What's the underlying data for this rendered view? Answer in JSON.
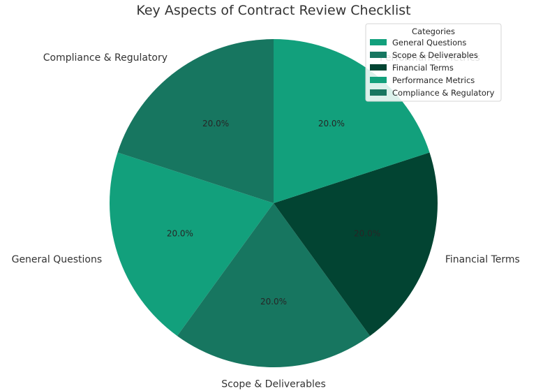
{
  "chart_data": {
    "type": "pie",
    "title": "Key Aspects of Contract Review Checklist",
    "categories": [
      "General Questions",
      "Scope & Deliverables",
      "Financial Terms",
      "Performance Metrics",
      "Compliance & Regulatory"
    ],
    "values": [
      20,
      20,
      20,
      20,
      20
    ],
    "percent_labels": [
      "20.0%",
      "20.0%",
      "20.0%",
      "20.0%",
      "20.0%"
    ],
    "colors": [
      "#12a07c",
      "#177660",
      "#024432",
      "#12a07c",
      "#177660"
    ],
    "legend": {
      "title": "Categories",
      "placement": "top-right",
      "entries": [
        "General Questions",
        "Scope & Deliverables",
        "Financial Terms",
        "Performance Metrics",
        "Compliance & Regulatory"
      ]
    },
    "start_angle_deg": 162,
    "direction": "counterclockwise"
  }
}
